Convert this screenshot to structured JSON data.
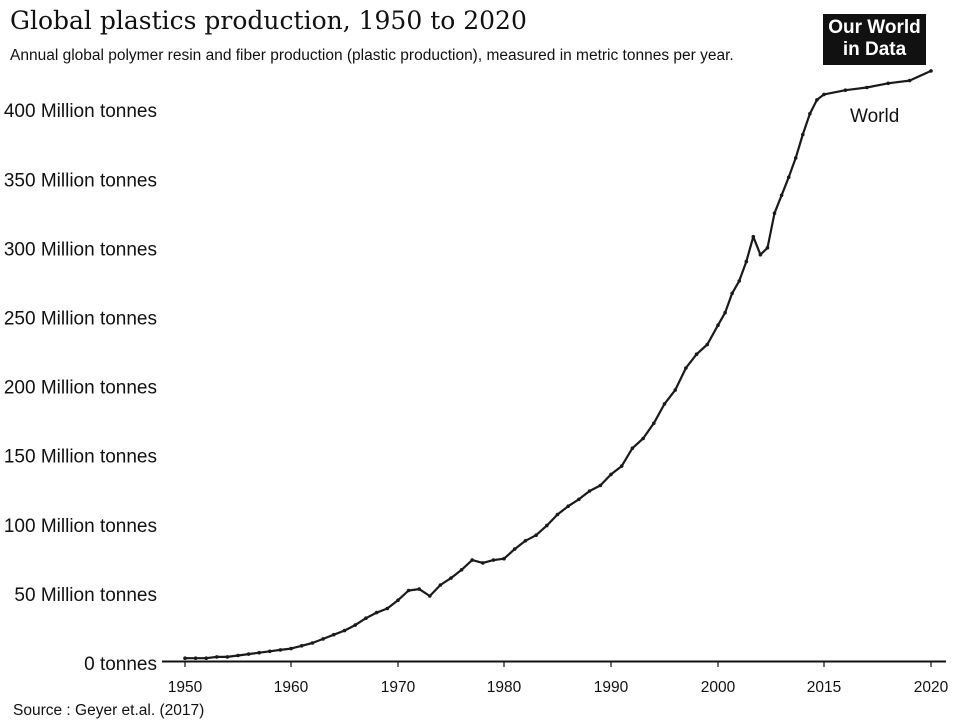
{
  "header": {
    "title": "Global plastics production, 1950 to 2020",
    "subtitle": "Annual global polymer resin and fiber production (plastic production), measured in metric tonnes per year."
  },
  "logo": {
    "line1": "Our World",
    "line2": "in Data"
  },
  "footer": {
    "source": "Source : Geyer et.al. (2017)"
  },
  "colors": {
    "line": "#1a1a1a",
    "logo_bg": "#111111",
    "text": "#111111"
  },
  "chart_data": {
    "type": "line",
    "title": "Global plastics production, 1950 to 2020",
    "y_tick_labels": [
      "0  tonnes",
      "50 Million tonnes",
      "100 Million tonnes",
      "150 Million tonnes",
      "200 Million tonnes",
      "250 Million tonnes",
      "300 Million tonnes",
      "350 Million tonnes",
      "400 Million tonnes"
    ],
    "y_tick_values": [
      0,
      50,
      100,
      150,
      200,
      250,
      300,
      350,
      400
    ],
    "x_tick_labels": [
      "1950",
      "1960",
      "1970",
      "1980",
      "1990",
      "2000",
      "2015",
      "2020"
    ],
    "ylim": [
      0,
      430
    ],
    "grid": false,
    "series": [
      {
        "name": "World",
        "x": [
          1950,
          1951,
          1952,
          1953,
          1954,
          1955,
          1956,
          1957,
          1958,
          1959,
          1960,
          1961,
          1962,
          1963,
          1964,
          1965,
          1966,
          1967,
          1968,
          1969,
          1970,
          1971,
          1972,
          1973,
          1974,
          1975,
          1976,
          1977,
          1978,
          1979,
          1980,
          1981,
          1982,
          1983,
          1984,
          1985,
          1986,
          1987,
          1988,
          1989,
          1990,
          1991,
          1992,
          1993,
          1994,
          1995,
          1996,
          1997,
          1998,
          1999,
          2000,
          2001,
          2002,
          2003,
          2004,
          2005,
          2006,
          2007,
          2008,
          2009,
          2010,
          2011,
          2012,
          2013,
          2014,
          2015,
          2016,
          2017,
          2018,
          2019,
          2020
        ],
        "y": [
          2,
          2,
          2,
          3,
          3,
          4,
          5,
          6,
          7,
          8,
          9,
          11,
          13,
          16,
          19,
          22,
          26,
          31,
          35,
          38,
          44,
          51,
          52,
          47,
          55,
          60,
          66,
          73,
          71,
          73,
          74,
          81,
          87,
          91,
          98,
          106,
          112,
          117,
          123,
          127,
          135,
          141,
          154,
          161,
          172,
          186,
          196,
          212,
          222,
          229,
          243,
          252,
          266,
          275,
          289,
          307,
          294,
          299,
          324,
          337,
          350,
          364,
          381,
          396,
          406,
          410,
          413,
          415,
          418,
          420,
          427
        ]
      }
    ]
  }
}
